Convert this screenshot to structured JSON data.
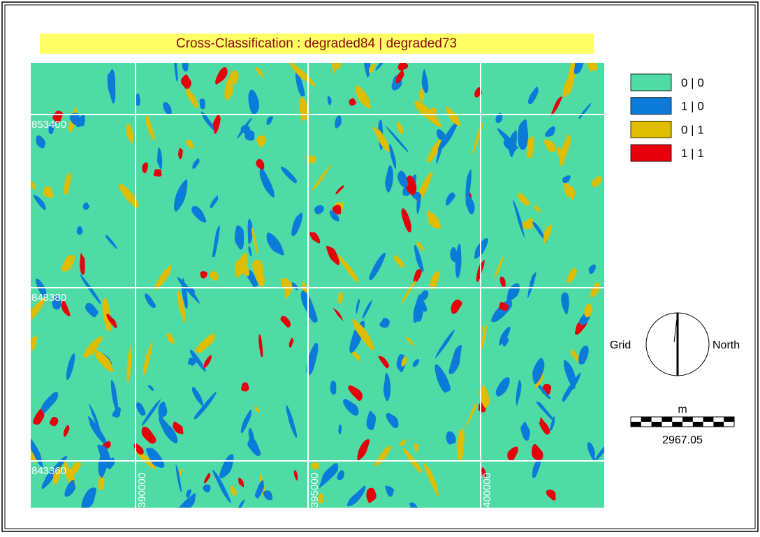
{
  "header": {
    "title": "Cross-Classification : degraded84 | degraded73"
  },
  "legend": [
    {
      "label": "0 | 0",
      "color": "#4fdba5"
    },
    {
      "label": "1 | 0",
      "color": "#0b7ad8"
    },
    {
      "label": "0 | 1",
      "color": "#dfbd00"
    },
    {
      "label": "1 | 1",
      "color": "#e6000b"
    }
  ],
  "grid_labels": {
    "northing": [
      "853400",
      "848380",
      "843360"
    ],
    "easting": [
      "390000",
      "395000",
      "400000"
    ]
  },
  "north_arrow": {
    "left": "Grid",
    "right": "North"
  },
  "scale_bar": {
    "unit": "m",
    "length": "2967.05"
  }
}
